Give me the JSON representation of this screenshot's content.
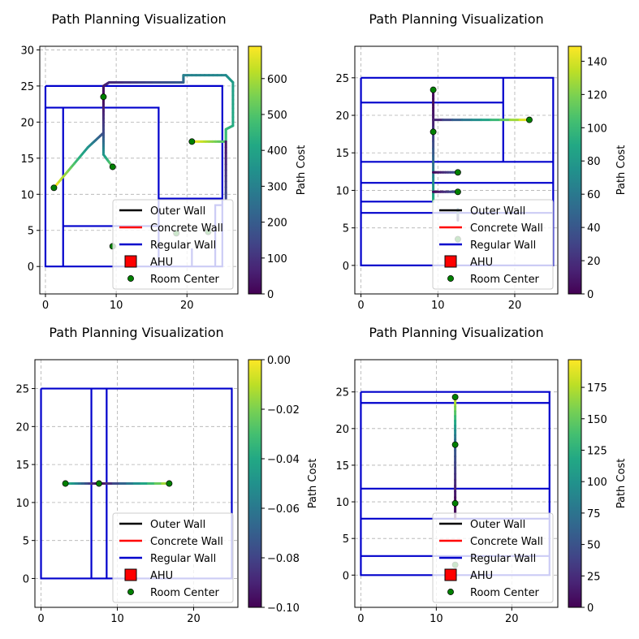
{
  "figure": {
    "legend_position": "lower right"
  },
  "legend": {
    "items": [
      {
        "label": "Outer Wall",
        "kind": "line",
        "color": "#000000"
      },
      {
        "label": "Concrete Wall",
        "kind": "line",
        "color": "#ff0000"
      },
      {
        "label": "Regular Wall",
        "kind": "line",
        "color": "#0000cc"
      },
      {
        "label": "AHU",
        "kind": "square",
        "color": "#ff0000"
      },
      {
        "label": "Room Center",
        "kind": "dot",
        "color": "#008000"
      }
    ]
  },
  "colormap": "viridis",
  "chart_data": [
    {
      "type": "line",
      "title": "Path Planning Visualization",
      "xlim": [
        -0.8,
        27.2
      ],
      "ylim": [
        -3.8,
        30.5
      ],
      "xticks": [
        0,
        10,
        20
      ],
      "yticks": [
        0,
        5,
        10,
        15,
        20,
        25,
        30
      ],
      "grid": true,
      "colorbar": {
        "label": "Path Cost",
        "min": 0,
        "max": 690,
        "ticks": [
          0,
          100,
          200,
          300,
          400,
          500,
          600
        ]
      },
      "walls": [
        {
          "points": [
            [
              0,
              25
            ],
            [
              25,
              25
            ],
            [
              25,
              0
            ],
            [
              0,
              0
            ],
            [
              0,
              25
            ]
          ]
        },
        {
          "points": [
            [
              0,
              22
            ],
            [
              16,
              22
            ],
            [
              16,
              0
            ]
          ]
        },
        {
          "points": [
            [
              2.5,
              22
            ],
            [
              2.5,
              0
            ]
          ]
        },
        {
          "points": [
            [
              2.5,
              5.6
            ],
            [
              16,
              5.6
            ]
          ]
        },
        {
          "points": [
            [
              16,
              9.4
            ],
            [
              25,
              9.4
            ]
          ]
        },
        {
          "points": [
            [
              20.7,
              0
            ],
            [
              20.7,
              2.5
            ]
          ]
        },
        {
          "points": [
            [
              24,
              0
            ],
            [
              24,
              8.5
            ],
            [
              25,
              8.5
            ]
          ]
        }
      ],
      "room_centers": [
        [
          8.2,
          23.5
        ],
        [
          9.5,
          13.8
        ],
        [
          1.2,
          10.9
        ],
        [
          20.7,
          17.3
        ],
        [
          9.5,
          2.8
        ],
        [
          18.5,
          4.6
        ],
        [
          23,
          4.8
        ]
      ],
      "paths": [
        {
          "points": [
            [
              8.2,
              23.5
            ],
            [
              8.2,
              25
            ],
            [
              9,
              25.5
            ],
            [
              19.5,
              25.5
            ],
            [
              19.5,
              26.5
            ],
            [
              25.5,
              26.5
            ],
            [
              26.5,
              25.5
            ],
            [
              26.5,
              19.5
            ],
            [
              25.5,
              19
            ],
            [
              25.5,
              17.3
            ],
            [
              20.7,
              17.3
            ]
          ],
          "costs": [
            0,
            40,
            80,
            200,
            300,
            320,
            380,
            420,
            460,
            470,
            690
          ]
        },
        {
          "points": [
            [
              8.2,
              23.5
            ],
            [
              8.2,
              18.5
            ],
            [
              6,
              16.5
            ],
            [
              1.2,
              10.9
            ]
          ],
          "costs": [
            0,
            150,
            340,
            690
          ]
        },
        {
          "points": [
            [
              8.2,
              18.5
            ],
            [
              8.2,
              15.5
            ],
            [
              9.5,
              13.8
            ]
          ],
          "costs": [
            150,
            350,
            550
          ]
        },
        {
          "points": [
            [
              25.5,
              17.3
            ],
            [
              25.5,
              9.4
            ]
          ],
          "costs": [
            30,
            150
          ]
        }
      ]
    },
    {
      "type": "line",
      "title": "Path Planning Visualization",
      "xlim": [
        -0.8,
        25.6
      ],
      "ylim": [
        -3.8,
        29.2
      ],
      "xticks": [
        0,
        10,
        20
      ],
      "yticks": [
        0,
        5,
        10,
        15,
        20,
        25
      ],
      "grid": true,
      "colorbar": {
        "label": "Path Cost",
        "min": 0,
        "max": 149,
        "ticks": [
          0,
          20,
          40,
          60,
          80,
          100,
          120,
          140
        ]
      },
      "walls": [
        {
          "points": [
            [
              0,
              25
            ],
            [
              25,
              25
            ],
            [
              25,
              0
            ],
            [
              0,
              0
            ],
            [
              0,
              25
            ]
          ]
        },
        {
          "points": [
            [
              0,
              21.7
            ],
            [
              18.5,
              21.7
            ]
          ]
        },
        {
          "points": [
            [
              18.5,
              25
            ],
            [
              18.5,
              13.8
            ]
          ]
        },
        {
          "points": [
            [
              0,
              13.8
            ],
            [
              25,
              13.8
            ]
          ]
        },
        {
          "points": [
            [
              0,
              11
            ],
            [
              25,
              11
            ]
          ]
        },
        {
          "points": [
            [
              0,
              8.5
            ],
            [
              9.4,
              8.5
            ]
          ]
        },
        {
          "points": [
            [
              0,
              7
            ],
            [
              25,
              7
            ]
          ]
        }
      ],
      "room_centers": [
        [
          9.4,
          23.4
        ],
        [
          21.9,
          19.4
        ],
        [
          9.4,
          17.8
        ],
        [
          12.6,
          12.4
        ],
        [
          12.6,
          9.8
        ],
        [
          12.6,
          3.5
        ]
      ],
      "paths": [
        {
          "points": [
            [
              9.4,
              23.4
            ],
            [
              9.4,
              19.4
            ],
            [
              21.9,
              19.4
            ]
          ],
          "costs": [
            0,
            10,
            148
          ]
        },
        {
          "points": [
            [
              9.4,
              19.4
            ],
            [
              9.4,
              9.8
            ],
            [
              9.4,
              8.5
            ]
          ],
          "costs": [
            10,
            80,
            95
          ]
        },
        {
          "points": [
            [
              9.4,
              12.4
            ],
            [
              12.6,
              12.4
            ]
          ],
          "costs": [
            0,
            40
          ]
        },
        {
          "points": [
            [
              9.4,
              9.8
            ],
            [
              12.6,
              9.8
            ]
          ],
          "costs": [
            0,
            40
          ]
        },
        {
          "points": [
            [
              12.6,
              6
            ],
            [
              12.6,
              7.5
            ]
          ],
          "costs": [
            10,
            60
          ]
        }
      ]
    },
    {
      "type": "line",
      "title": "Path Planning Visualization",
      "xlim": [
        -0.8,
        25.8
      ],
      "ylim": [
        -3.8,
        28.8
      ],
      "xticks": [
        0,
        10,
        20
      ],
      "yticks": [
        0,
        5,
        10,
        15,
        20,
        25
      ],
      "grid": true,
      "colorbar": {
        "label": "Path Cost",
        "min": -0.1,
        "max": 0.0,
        "ticks": [
          -0.1,
          -0.08,
          -0.06,
          -0.04,
          -0.02,
          0.0
        ],
        "tick_labels": [
          "−0.10",
          "−0.08",
          "−0.06",
          "−0.04",
          "−0.02",
          "0.00"
        ]
      },
      "walls": [
        {
          "points": [
            [
              0,
              25
            ],
            [
              25,
              25
            ],
            [
              25,
              0
            ],
            [
              0,
              0
            ],
            [
              0,
              25
            ]
          ]
        },
        {
          "points": [
            [
              6.6,
              25
            ],
            [
              6.6,
              0
            ]
          ]
        },
        {
          "points": [
            [
              8.6,
              25
            ],
            [
              8.6,
              0
            ]
          ]
        }
      ],
      "room_centers": [
        [
          3.2,
          12.5
        ],
        [
          7.6,
          12.5
        ],
        [
          16.8,
          12.5
        ]
      ],
      "paths": [
        {
          "points": [
            [
              3.2,
              12.5
            ],
            [
              7.6,
              12.5
            ]
          ],
          "costs": [
            -0.03,
            -0.1
          ]
        },
        {
          "points": [
            [
              7.6,
              12.5
            ],
            [
              16.8,
              12.5
            ]
          ],
          "costs": [
            -0.1,
            -0.01
          ]
        }
      ]
    },
    {
      "type": "line",
      "title": "Path Planning Visualization",
      "xlim": [
        -0.8,
        26.1
      ],
      "ylim": [
        -4.4,
        29.4
      ],
      "xticks": [
        0,
        10,
        20
      ],
      "yticks": [
        0,
        5,
        10,
        15,
        20,
        25
      ],
      "grid": true,
      "colorbar": {
        "label": "Path Cost",
        "min": 0,
        "max": 197,
        "ticks": [
          0,
          25,
          50,
          75,
          100,
          125,
          150,
          175
        ]
      },
      "walls": [
        {
          "points": [
            [
              0,
              25
            ],
            [
              25,
              25
            ],
            [
              25,
              0
            ],
            [
              0,
              0
            ],
            [
              0,
              25
            ]
          ]
        },
        {
          "points": [
            [
              0,
              23.5
            ],
            [
              25,
              23.5
            ]
          ]
        },
        {
          "points": [
            [
              0,
              11.8
            ],
            [
              25,
              11.8
            ]
          ]
        },
        {
          "points": [
            [
              0,
              7.7
            ],
            [
              25,
              7.7
            ]
          ]
        },
        {
          "points": [
            [
              0,
              2.6
            ],
            [
              25,
              2.6
            ]
          ]
        }
      ],
      "room_centers": [
        [
          12.5,
          24.3
        ],
        [
          12.5,
          17.8
        ],
        [
          12.5,
          9.8
        ],
        [
          12.5,
          1.4
        ]
      ],
      "paths": [
        {
          "points": [
            [
              12.5,
              24.3
            ],
            [
              12.5,
              17.8
            ]
          ],
          "costs": [
            190,
            60
          ]
        },
        {
          "points": [
            [
              12.5,
              17.8
            ],
            [
              12.5,
              9.8
            ],
            [
              12.5,
              7.7
            ]
          ],
          "costs": [
            60,
            5,
            0
          ]
        }
      ]
    }
  ]
}
